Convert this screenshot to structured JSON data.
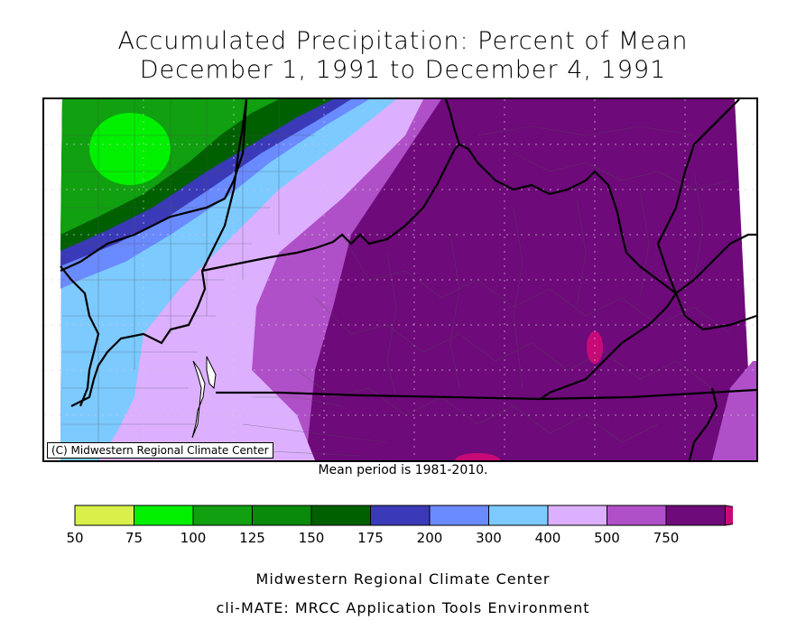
{
  "header": {
    "title": "Accumulated Precipitation: Percent of Mean",
    "subtitle": "December 1, 1991 to December 4, 1991"
  },
  "map": {
    "copyright": "(C) Midwestern Regional Climate Center",
    "mean_note": "Mean period is 1981-2010."
  },
  "legend": {
    "labels": [
      "50",
      "75",
      "100",
      "125",
      "150",
      "175",
      "200",
      "300",
      "400",
      "500",
      "750"
    ],
    "colors": [
      "#d9f04a",
      "#00f000",
      "#10a010",
      "#0a8a0a",
      "#006000",
      "#3a3ab8",
      "#6a8aff",
      "#7ccaff",
      "#dcb0ff",
      "#b050c8",
      "#6e0a7a",
      "#c80a78"
    ]
  },
  "footer": {
    "line1": "Midwestern Regional Climate Center",
    "line2": "cli-MATE: MRCC Application Tools Environment"
  }
}
